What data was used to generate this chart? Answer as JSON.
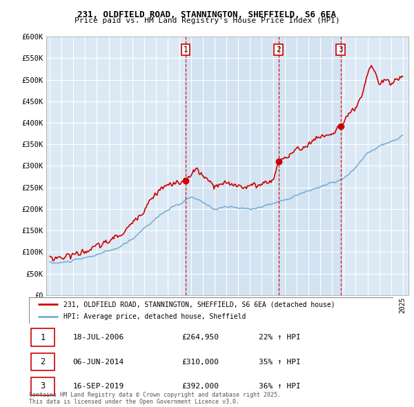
{
  "title1": "231, OLDFIELD ROAD, STANNINGTON, SHEFFIELD, S6 6EA",
  "title2": "Price paid vs. HM Land Registry's House Price Index (HPI)",
  "legend_line1": "231, OLDFIELD ROAD, STANNINGTON, SHEFFIELD, S6 6EA (detached house)",
  "legend_line2": "HPI: Average price, detached house, Sheffield",
  "table": [
    {
      "num": "1",
      "date": "18-JUL-2006",
      "price": "£264,950",
      "change": "22% ↑ HPI"
    },
    {
      "num": "2",
      "date": "06-JUN-2014",
      "price": "£310,000",
      "change": "35% ↑ HPI"
    },
    {
      "num": "3",
      "date": "16-SEP-2019",
      "price": "£392,000",
      "change": "36% ↑ HPI"
    }
  ],
  "footer": "Contains HM Land Registry data © Crown copyright and database right 2025.\nThis data is licensed under the Open Government Licence v3.0.",
  "sale_color": "#cc0000",
  "hpi_color": "#7aaed6",
  "vline_color": "#cc0000",
  "shade_color": "#dce9f5",
  "background_color": "#ffffff",
  "chart_bg": "#dce9f5",
  "ylim": [
    0,
    600000
  ],
  "yticks": [
    0,
    50000,
    100000,
    150000,
    200000,
    250000,
    300000,
    350000,
    400000,
    450000,
    500000,
    550000,
    600000
  ],
  "sale_dates": [
    2006.54,
    2014.43,
    2019.71
  ],
  "sale_prices": [
    264950,
    310000,
    392000
  ],
  "sale_labels": [
    "1",
    "2",
    "3"
  ]
}
